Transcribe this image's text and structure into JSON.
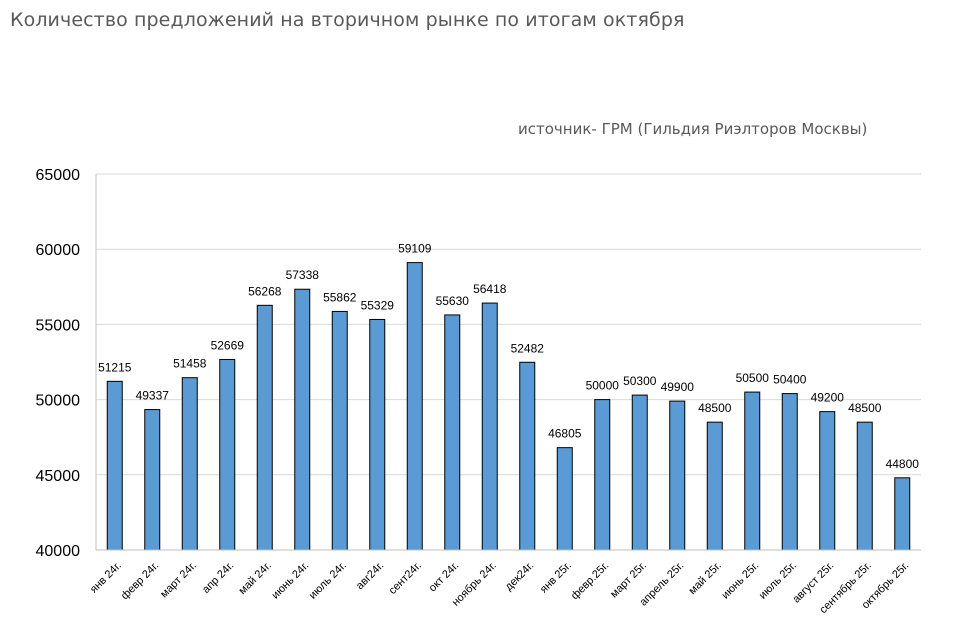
{
  "title": "Количество предложений на вторичном рынке по итогам октября",
  "source": "источник- ГРМ (Гильдия Риэлторов Москвы)",
  "colors": {
    "bar": "#5b9bd5",
    "bar_stroke": "#000000",
    "grid": "#d9d9d9",
    "axis": "#000000",
    "text": "#000000"
  },
  "chart_data": {
    "type": "bar",
    "title": "Количество предложений на вторичном рынке по итогам октября",
    "xlabel": "",
    "ylabel": "",
    "ylim": [
      40000,
      65000
    ],
    "yticks": [
      40000,
      45000,
      50000,
      55000,
      60000,
      65000
    ],
    "ytick_labels": [
      "40000",
      "45000",
      "50000",
      "55000",
      "60000",
      "65000"
    ],
    "grid": true,
    "categories": [
      "янв 24г.",
      "февр 24г.",
      "март 24г.",
      "апр 24г.",
      "май 24г.",
      "июнь 24г.",
      "июль 24г.",
      "авг24г.",
      "сент24г.",
      "окт 24г.",
      "ноябрь 24г.",
      "дек24г.",
      "янв 25г.",
      "февр.25г.",
      "март 25г.",
      "апрель 25г.",
      "май 25г.",
      "июнь 25г.",
      "июль 25г.",
      "август 25г.",
      "сентябрь 25г.",
      "октябрь 25г."
    ],
    "values": [
      51215,
      49337,
      51458,
      52669,
      56268,
      57338,
      55862,
      55329,
      59109,
      55630,
      56418,
      52482,
      46805,
      50000,
      50300,
      49900,
      48500,
      50500,
      50400,
      49200,
      48500,
      44800
    ],
    "value_labels": [
      "51215",
      "49337",
      "51458",
      "52669",
      "56268",
      "57338",
      "55862",
      "55329",
      "59109",
      "55630",
      "56418",
      "52482",
      "46805",
      "50000",
      "50300",
      "49900",
      "48500",
      "50500",
      "50400",
      "49200",
      "48500",
      "44800"
    ]
  }
}
